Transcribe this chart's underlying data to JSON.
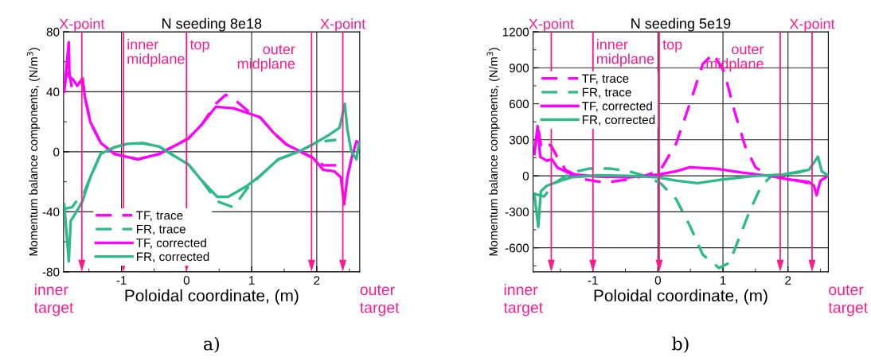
{
  "chart_data": [
    {
      "type": "line",
      "title": "N seeding 8e18",
      "xlabel": "Poloidal coordinate, (m)",
      "ylabel": "Momentum balance components, (N/m$^{3}$)",
      "xlim": [
        -1.89,
        2.66
      ],
      "xticks": [
        -1,
        0,
        1,
        2
      ],
      "ylim": [
        -80,
        80
      ],
      "yticks": [
        -80,
        -40,
        0,
        40,
        80
      ],
      "grid": true,
      "legend": "bottom left",
      "series": [
        {
          "name": "TF, trace",
          "color": "#ff00ff",
          "line_style": "dashed",
          "x": [
            -1.88,
            -1.82,
            -1.76,
            -1.68,
            -1.6,
            -1.56,
            -1.48,
            -1.32,
            -1.11,
            -0.75,
            -0.42,
            -0.14,
            0.03,
            0.23,
            0.45,
            0.6,
            0.76,
            1.0,
            1.13,
            1.33,
            1.53,
            1.74,
            1.94,
            2.1,
            2.3
          ],
          "values": [
            43,
            57,
            42,
            44,
            48,
            36,
            20,
            6,
            -1.4,
            -5,
            -1.4,
            5,
            9,
            18,
            32,
            38,
            34,
            25,
            23,
            13,
            5,
            0.4,
            -4,
            -9,
            -9
          ]
        },
        {
          "name": "FR, trace",
          "color": "#2db98a",
          "line_style": "dashed",
          "x": [
            -1.88,
            -1.76,
            -1.66,
            -1.6,
            -1.48,
            -1.32,
            -1.11,
            -0.91,
            -0.67,
            -0.42,
            -0.18,
            0.03,
            0.23,
            0.47,
            0.72,
            0.92,
            1.13,
            1.41,
            1.74,
            1.94,
            2.1,
            2.3
          ],
          "values": [
            -38,
            -37,
            -31,
            -30,
            -17,
            -1.4,
            3,
            5.3,
            5.7,
            3.5,
            -3,
            -8.5,
            -19,
            -33,
            -37,
            -25,
            -16,
            -5,
            0.4,
            5,
            7,
            8
          ]
        },
        {
          "name": "TF, corrected",
          "color": "#ff00ff",
          "line_style": "solid",
          "x": [
            -1.88,
            -1.81,
            -1.8,
            -1.74,
            -1.68,
            -1.6,
            -1.56,
            -1.48,
            -1.32,
            -1.11,
            -0.75,
            -0.42,
            -0.14,
            0.03,
            0.23,
            0.45,
            0.72,
            1.0,
            1.13,
            1.33,
            1.53,
            1.74,
            1.94,
            2.1,
            2.27,
            2.37,
            2.42,
            2.47,
            2.53,
            2.61,
            2.65
          ],
          "values": [
            40,
            73,
            50,
            48,
            44,
            49,
            36,
            20,
            6,
            -1.4,
            -5,
            -1.4,
            5,
            9,
            18,
            30,
            29,
            25,
            23,
            13,
            5,
            0.4,
            -4,
            -12,
            -13,
            -17,
            -35,
            -17,
            -5,
            7,
            6
          ]
        },
        {
          "name": "FR, corrected",
          "color": "#2db98a",
          "line_style": "solid",
          "x": [
            -1.88,
            -1.81,
            -1.78,
            -1.72,
            -1.6,
            -1.48,
            -1.32,
            -1.11,
            -0.91,
            -0.67,
            -0.42,
            -0.18,
            0.03,
            0.23,
            0.47,
            0.64,
            0.92,
            1.13,
            1.41,
            1.74,
            1.94,
            2.18,
            2.35,
            2.43,
            2.47,
            2.53,
            2.61,
            2.65
          ],
          "values": [
            -35,
            -73,
            -46,
            -42,
            -33,
            -17,
            -1.4,
            3,
            5.3,
            5.7,
            3.5,
            -3,
            -8.5,
            -19,
            -30,
            -30,
            -23,
            -16,
            -5,
            0.4,
            5,
            11,
            16,
            32,
            15,
            0.4,
            -5,
            6
          ]
        }
      ],
      "ref_lines": [
        {
          "axis": "x",
          "value": -1.61,
          "label": "X-point",
          "color": "#ff1a8c"
        },
        {
          "axis": "x",
          "value": -0.97,
          "label": "inner\nmidplane",
          "color": "#ff1a8c"
        },
        {
          "axis": "x",
          "value": 0,
          "label": "top",
          "color": "#ff1a8c"
        },
        {
          "axis": "x",
          "value": 1.92,
          "label": "outer\nmidplane",
          "color": "#ff1a8c"
        },
        {
          "axis": "x",
          "value": 2.4,
          "label": "X-point",
          "color": "#ff1a8c"
        }
      ],
      "annotations": [
        "inner\ntarget",
        "outer\ntarget",
        "a)"
      ]
    },
    {
      "type": "line",
      "title": "N seeding 5e19",
      "xlabel": "Poloidal coordinate, (m)",
      "ylabel": "Momentum balance components, (N/m$^{3}$)",
      "xlim": [
        -1.92,
        2.62
      ],
      "xticks": [
        -1,
        0,
        1,
        2
      ],
      "ylim": [
        -800,
        1200
      ],
      "yticks": [
        -600,
        -300,
        0,
        300,
        600,
        900,
        1200
      ],
      "grid": true,
      "legend": "top left",
      "series": [
        {
          "name": "TF, trace",
          "color": "#ff00ff",
          "line_style": "dashed",
          "x": [
            -1.9,
            -1.84,
            -1.79,
            -1.65,
            -1.55,
            -1.42,
            -1.14,
            -0.81,
            -0.45,
            -0.2,
            0.04,
            0.28,
            0.49,
            0.69,
            0.85,
            1.02,
            1.18,
            1.34,
            1.5,
            1.71,
            1.91,
            2.15,
            2.32
          ],
          "values": [
            203,
            400,
            225,
            258,
            159,
            49,
            -29,
            -57,
            -29,
            0,
            49,
            269,
            600,
            931,
            1019,
            865,
            534,
            247,
            71,
            0,
            -13,
            -40,
            -62
          ]
        },
        {
          "name": "FR, trace",
          "color": "#2db98a",
          "line_style": "dashed",
          "x": [
            -1.9,
            -1.75,
            -1.59,
            -1.34,
            -1.06,
            -0.73,
            -0.45,
            -0.2,
            0.04,
            0.28,
            0.49,
            0.69,
            0.94,
            1.1,
            1.26,
            1.42,
            1.59,
            1.75,
            1.91,
            2.15,
            2.32
          ],
          "values": [
            -150,
            -172,
            -62,
            26,
            60,
            60,
            38,
            0,
            -62,
            -194,
            -415,
            -657,
            -768,
            -724,
            -503,
            -282,
            -84,
            0,
            15,
            26,
            53
          ]
        },
        {
          "name": "TF, corrected",
          "color": "#ff00ff",
          "line_style": "solid",
          "x": [
            -1.9,
            -1.85,
            -1.81,
            -1.71,
            -1.63,
            -1.55,
            -1.34,
            -0.94,
            -0.45,
            0,
            0.28,
            0.49,
            0.89,
            1.3,
            1.71,
            1.99,
            2.32,
            2.4,
            2.44,
            2.5,
            2.62
          ],
          "values": [
            181,
            413,
            159,
            126,
            137,
            71,
            15,
            -7,
            -13,
            9,
            38,
            71,
            60,
            26,
            0,
            -29,
            -51,
            -84,
            -161,
            -40,
            0
          ]
        },
        {
          "name": "FR, corrected",
          "color": "#2db98a",
          "line_style": "solid",
          "x": [
            -1.9,
            -1.84,
            -1.8,
            -1.71,
            -1.55,
            -1.34,
            -0.94,
            -0.45,
            0,
            0.28,
            0.61,
            1.02,
            1.5,
            1.91,
            2.32,
            2.46,
            2.52,
            2.62
          ],
          "values": [
            -150,
            -426,
            -128,
            -84,
            -51,
            -13,
            4,
            0,
            -13,
            -40,
            -62,
            -29,
            0,
            9,
            49,
            159,
            38,
            0
          ]
        }
      ],
      "ref_lines": [
        {
          "axis": "x",
          "value": -1.64,
          "label": "X-point",
          "color": "#ff1a8c"
        },
        {
          "axis": "x",
          "value": -1.0,
          "label": "inner\nmidplane",
          "color": "#ff1a8c"
        },
        {
          "axis": "x",
          "value": 0.02,
          "label": "top",
          "color": "#ff1a8c"
        },
        {
          "axis": "x",
          "value": 1.88,
          "label": "outer\nmidplane",
          "color": "#ff1a8c"
        },
        {
          "axis": "x",
          "value": 2.37,
          "label": "X-point",
          "color": "#ff1a8c"
        }
      ],
      "annotations": [
        "inner\ntarget",
        "outer\ntarget",
        "b)"
      ]
    }
  ]
}
